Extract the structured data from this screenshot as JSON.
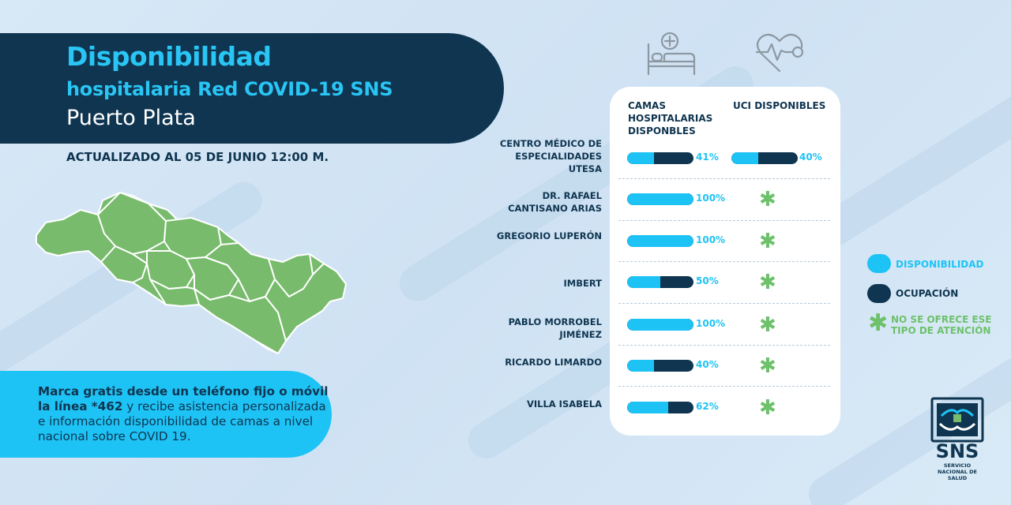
{
  "header": {
    "title_line1": "Disponibilidad",
    "title_line2": "hospitalaria Red COVID-19 SNS",
    "title_line3": "Puerto Plata",
    "updated": "ACTUALIZADO AL 05 DE JUNIO 12:00 M."
  },
  "info": {
    "bold_part": "Marca gratis desde un teléfono fijo o móvil la línea *462",
    "rest": " y recibe asistencia personalizada e información disponibilidad de camas a nivel nacional sobre COVID 19."
  },
  "table": {
    "col1": "CAMAS HOSPITALARIAS DISPONBLES",
    "col2": "UCI DISPONIBLES",
    "rows": [
      {
        "label": "CENTRO MÉDICO DE ESPECIALIDADES UTESA",
        "camas_pct": "41%",
        "camas_value": 41,
        "uci_pct": "40%",
        "uci_value": 40,
        "uci_available": true
      },
      {
        "label": "DR. RAFAEL CANTISANO ARIAS",
        "camas_pct": "100%",
        "camas_value": 100,
        "uci_available": false
      },
      {
        "label": "GREGORIO LUPERÓN",
        "camas_pct": "100%",
        "camas_value": 100,
        "uci_available": false
      },
      {
        "label": "IMBERT",
        "camas_pct": "50%",
        "camas_value": 50,
        "uci_available": false
      },
      {
        "label": "PABLO MORROBEL JIMÉNEZ",
        "camas_pct": "100%",
        "camas_value": 100,
        "uci_available": false
      },
      {
        "label": "RICARDO LIMARDO",
        "camas_pct": "40%",
        "camas_value": 40,
        "uci_available": false
      },
      {
        "label": "VILLA ISABELA",
        "camas_pct": "62%",
        "camas_value": 62,
        "uci_available": false
      }
    ]
  },
  "legend": {
    "available": "DISPONIBILIDAD",
    "occupied": "OCUPACIÓN",
    "not_offered": "NO SE OFRECE ESE TIPO DE ATENCIÓN"
  },
  "logo": {
    "name": "SNS",
    "subtitle": "SERVICIO NACIONAL DE SALUD"
  },
  "icons": {
    "bed": "hospital-bed-icon",
    "heart": "heart-rate-icon",
    "not_offered": "asterisk-icon"
  },
  "colors": {
    "navy": "#0f3550",
    "cyan": "#1ec3f5",
    "green": "#6dc16b",
    "map_green": "#78bb6c"
  }
}
